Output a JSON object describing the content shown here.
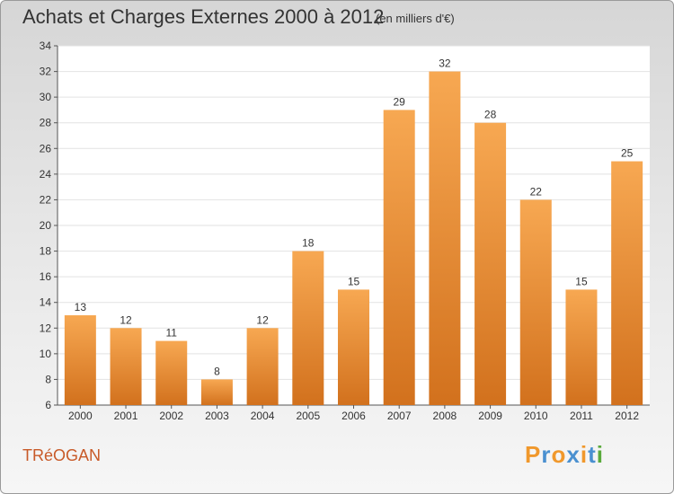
{
  "title": "Achats et Charges Externes 2000 à 2012",
  "unit": "(en milliers d'€)",
  "commune": "TRéOGAN",
  "logo": "Proxiti",
  "colors": {
    "bar_top": "#f7a852",
    "bar_bottom": "#d2711d",
    "commune_text": "#c85a28",
    "logo_letters": [
      "#f0982c",
      "#4a90d0",
      "#f0982c",
      "#4a90d0",
      "#f0982c",
      "#4a90d0",
      "#5aaa3c"
    ]
  },
  "chart_data": {
    "type": "bar",
    "categories": [
      "2000",
      "2001",
      "2002",
      "2003",
      "2004",
      "2005",
      "2006",
      "2007",
      "2008",
      "2009",
      "2010",
      "2011",
      "2012"
    ],
    "values": [
      13,
      12,
      11,
      8,
      12,
      18,
      15,
      29,
      32,
      28,
      22,
      15,
      25
    ],
    "data_labels": [
      "13",
      "12",
      "11",
      "8",
      "12",
      "18",
      "15",
      "29",
      "32",
      "28",
      "22",
      "15",
      "25"
    ],
    "ylim": [
      6,
      34
    ],
    "yticks": [
      6,
      8,
      10,
      12,
      14,
      16,
      18,
      20,
      22,
      24,
      26,
      28,
      30,
      32,
      34
    ],
    "grid": true
  }
}
